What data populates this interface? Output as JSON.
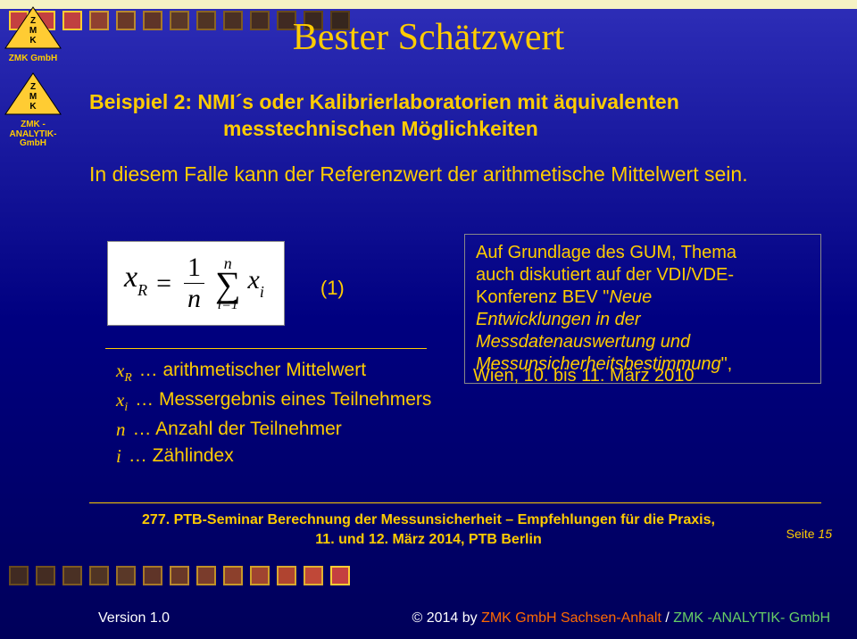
{
  "title": "Bester Schätzwert",
  "logos": {
    "top": "ZMK GmbH",
    "bottom": "ZMK -ANALYTIK-\nGmbH"
  },
  "subtitle_l1": "Beispiel 2: NMI´s oder Kalibrierlaboratorien mit äquivalenten",
  "subtitle_l2": "messtechnischen Möglichkeiten",
  "paragraph": "In diesem Falle kann der Referenzwert der arithmetische Mittelwert sein.",
  "formula": {
    "lhs_var": "x",
    "lhs_sub": "R",
    "eq": "=",
    "frac_num": "1",
    "frac_den": "n",
    "sum_top": "n",
    "sum_bot": "i=1",
    "term_var": "x",
    "term_sub": "i",
    "number": "(1)"
  },
  "note": {
    "l1": "Auf Grundlage des GUM, Thema",
    "l2": "auch diskutiert auf der VDI/VDE-",
    "l3": "Konferenz BEV \"",
    "l3_em": "Neue",
    "l4_em": "Entwicklungen in der",
    "l5_em": "Messdatenauswertung und",
    "l6_em": "Messunsicherheitsbestimmung",
    "l6_tail": "\","
  },
  "wien": "Wien, 10. bis 11. März 2010",
  "legend": [
    {
      "sym": "x",
      "sub": "R",
      "txt": "… arithmetischer Mittelwert"
    },
    {
      "sym": "x",
      "sub": "i",
      "txt": "… Messergebnis eines Teilnehmers"
    },
    {
      "sym": "n",
      "sub": "",
      "txt": "… Anzahl der Teilnehmer"
    },
    {
      "sym": "i",
      "sub": "",
      "txt": "… Zählindex"
    }
  ],
  "footer": {
    "line1": "277. PTB-Seminar Berechnung der Messunsicherheit – Empfehlungen für die Praxis,",
    "line2": "11. und 12. März 2014, PTB Berlin",
    "seite_label": "Seite ",
    "seite_num": "15",
    "version": "Version 1.0",
    "copy_pre": "© 2014 by ",
    "copy_a": "ZMK GmbH Sachsen-Anhalt",
    "copy_sep": " / ",
    "copy_b": "ZMK -ANALYTIK- GmbH"
  },
  "square_rows": {
    "top_colors": [
      {
        "fill": "#c44040",
        "border": "#ffcc33"
      },
      {
        "fill": "#c44040",
        "border": "#ffcc33"
      },
      {
        "fill": "#c04040",
        "border": "#ffcc33"
      },
      {
        "fill": "#904030",
        "border": "#cc9933"
      },
      {
        "fill": "#6a3828",
        "border": "#b88830"
      },
      {
        "fill": "#5f3428",
        "border": "#a87828"
      },
      {
        "fill": "#5a3828",
        "border": "#987028"
      },
      {
        "fill": "#503424",
        "border": "#8a6424"
      },
      {
        "fill": "#4a3024",
        "border": "#7e5a22"
      },
      {
        "fill": "#442c22",
        "border": "#725220"
      },
      {
        "fill": "#402a22",
        "border": "#684a1e"
      },
      {
        "fill": "#3a2820",
        "border": "#5e421c"
      },
      {
        "fill": "#36261e",
        "border": "#563c1a"
      }
    ],
    "bot_colors": [
      {
        "fill": "#402a22",
        "border": "#684a1e"
      },
      {
        "fill": "#442c22",
        "border": "#725220"
      },
      {
        "fill": "#4a3024",
        "border": "#7e5a22"
      },
      {
        "fill": "#503424",
        "border": "#8a6424"
      },
      {
        "fill": "#5a3828",
        "border": "#987028"
      },
      {
        "fill": "#5f3428",
        "border": "#a87828"
      },
      {
        "fill": "#6a3828",
        "border": "#b88830"
      },
      {
        "fill": "#7a3c2c",
        "border": "#c09028"
      },
      {
        "fill": "#8c402c",
        "border": "#c89828"
      },
      {
        "fill": "#a04430",
        "border": "#d0a028"
      },
      {
        "fill": "#b04430",
        "border": "#d8a830"
      },
      {
        "fill": "#c04838",
        "border": "#e0b030"
      },
      {
        "fill": "#c44040",
        "border": "#ffcc33"
      }
    ]
  }
}
